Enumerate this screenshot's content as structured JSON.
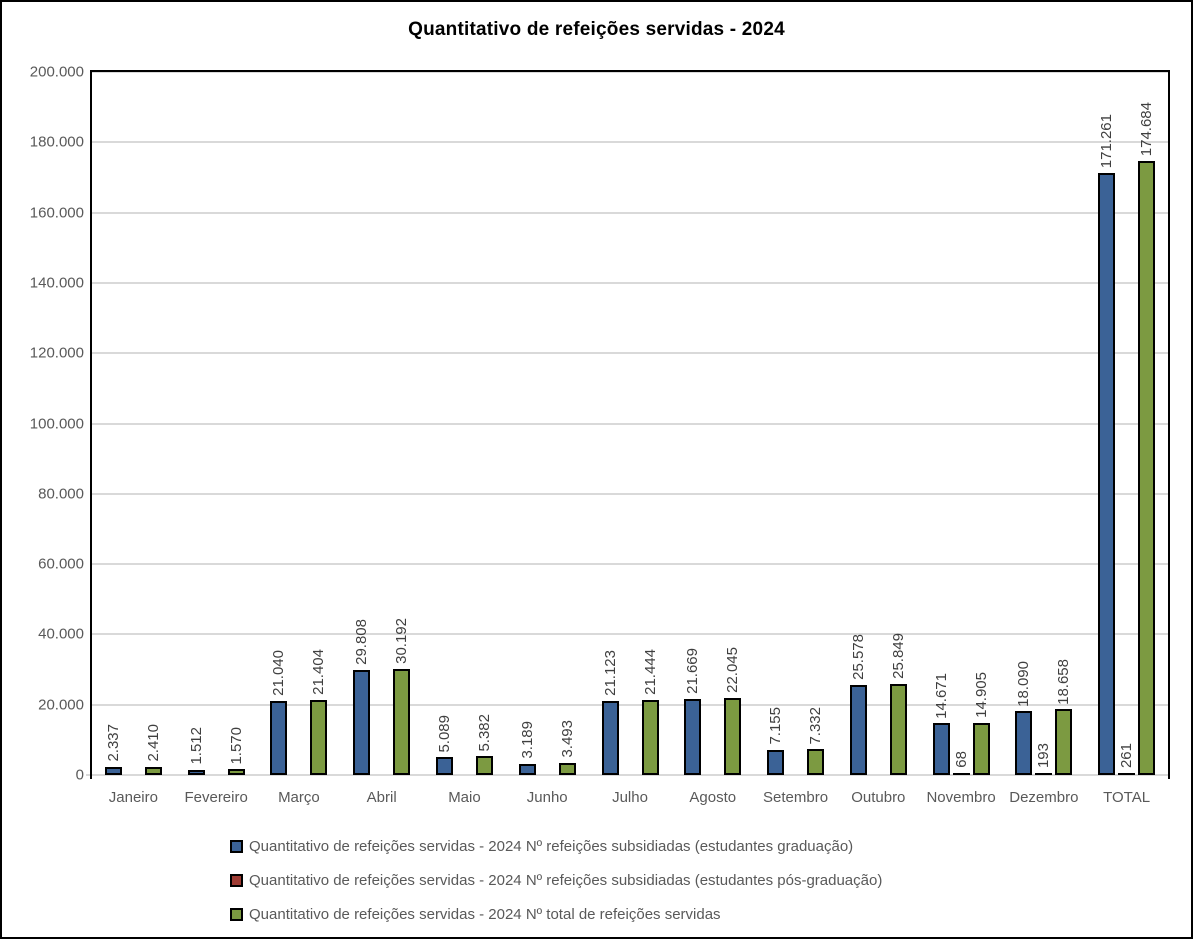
{
  "chart_title": "Quantitativo de refeições servidas - 2024",
  "colors": {
    "background": "#FFFFFF",
    "window_border": "#000000",
    "title_text": "#000000",
    "series_graduacao": "#3B6296",
    "series_pos_graduacao": "#9E3B33",
    "series_total": "#7C9A41",
    "bar_border": "#000000",
    "gridline": "#D9D9D9",
    "axis_line": "#D9D9D9",
    "plot_border": "#000000",
    "axis_label_text": "#595959",
    "data_label_text": "#3F3F3F"
  },
  "chart_data": {
    "type": "bar",
    "title": "Quantitativo de refeições servidas - 2024",
    "categories": [
      "Janeiro",
      "Fevereiro",
      "Março",
      "Abril",
      "Maio",
      "Junho",
      "Julho",
      "Agosto",
      "Setembro",
      "Outubro",
      "Novembro",
      "Dezembro",
      "TOTAL"
    ],
    "series": [
      {
        "key": "graduacao",
        "name": "Quantitativo de refeições servidas - 2024 Nº refeições subsidiadas (estudantes graduação)",
        "color": "#3B6296",
        "values": [
          2337,
          1512,
          21040,
          29808,
          5089,
          3189,
          21123,
          21669,
          7155,
          25578,
          14671,
          18090,
          171261
        ],
        "labels": [
          "2.337",
          "1.512",
          "21.040",
          "29.808",
          "5.089",
          "3.189",
          "21.123",
          "21.669",
          "7.155",
          "25.578",
          "14.671",
          "18.090",
          "171.261"
        ]
      },
      {
        "key": "pos-graduacao",
        "name": "Quantitativo de refeições servidas - 2024 Nº refeições subsidiadas (estudantes pós-graduação)",
        "color": "#9E3B33",
        "values": [
          0,
          0,
          0,
          0,
          0,
          0,
          0,
          0,
          0,
          0,
          68,
          193,
          261
        ],
        "labels": [
          "",
          "",
          "",
          "",
          "",
          "",
          "",
          "",
          "",
          "",
          "68",
          "193",
          "261"
        ]
      },
      {
        "key": "total",
        "name": "Quantitativo de refeições servidas - 2024 Nº total de refeições servidas",
        "color": "#7C9A41",
        "values": [
          2410,
          1570,
          21404,
          30192,
          5382,
          3493,
          21444,
          22045,
          7332,
          25849,
          14905,
          18658,
          174684
        ],
        "labels": [
          "2.410",
          "1.570",
          "21.404",
          "30.192",
          "5.382",
          "3.493",
          "21.444",
          "22.045",
          "7.332",
          "25.849",
          "14.905",
          "18.658",
          "174.684"
        ]
      }
    ],
    "ylim": [
      0,
      200000
    ],
    "y_tick_step": 20000,
    "y_tick_labels": [
      "0",
      "20.000",
      "40.000",
      "60.000",
      "80.000",
      "100.000",
      "120.000",
      "140.000",
      "160.000",
      "180.000",
      "200.000"
    ],
    "grid": true,
    "legend_position": "bottom",
    "data_label_rotation": 90
  },
  "legend": {
    "items": [
      {
        "label": "Quantitativo de refeições servidas - 2024 Nº refeições subsidiadas (estudantes graduação)",
        "color": "#3B6296"
      },
      {
        "label": "Quantitativo de refeições servidas - 2024 Nº refeições subsidiadas (estudantes pós-graduação)",
        "color": "#9E3B33"
      },
      {
        "label": "Quantitativo de refeições servidas - 2024 Nº total de refeições servidas",
        "color": "#7C9A41"
      }
    ]
  }
}
